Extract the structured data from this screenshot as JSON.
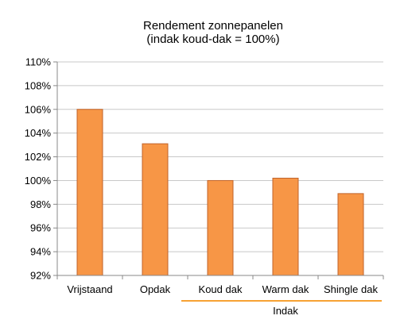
{
  "chart_data": {
    "type": "bar",
    "title": "Rendement zonnepanelen",
    "subtitle": "(indak koud-dak = 100%)",
    "categories": [
      "Vrijstaand",
      "Opdak",
      "Koud dak",
      "Warm dak",
      "Shingle dak"
    ],
    "values": [
      106.0,
      103.1,
      100.0,
      100.2,
      98.9
    ],
    "ylim": [
      92,
      110
    ],
    "yticks": [
      92,
      94,
      96,
      98,
      100,
      102,
      104,
      106,
      108,
      110
    ],
    "ytick_labels": [
      "92%",
      "94%",
      "96%",
      "98%",
      "100%",
      "102%",
      "104%",
      "106%",
      "108%",
      "110%"
    ],
    "grid": true,
    "group_label": "Indak",
    "group_categories": [
      "Koud dak",
      "Warm dak",
      "Shingle dak"
    ],
    "colors": {
      "bar_fill": "#F79646",
      "bar_stroke": "#C0632A",
      "group_line": "#F7A233",
      "grid": "#C8C8C8",
      "axis": "#888888"
    }
  }
}
